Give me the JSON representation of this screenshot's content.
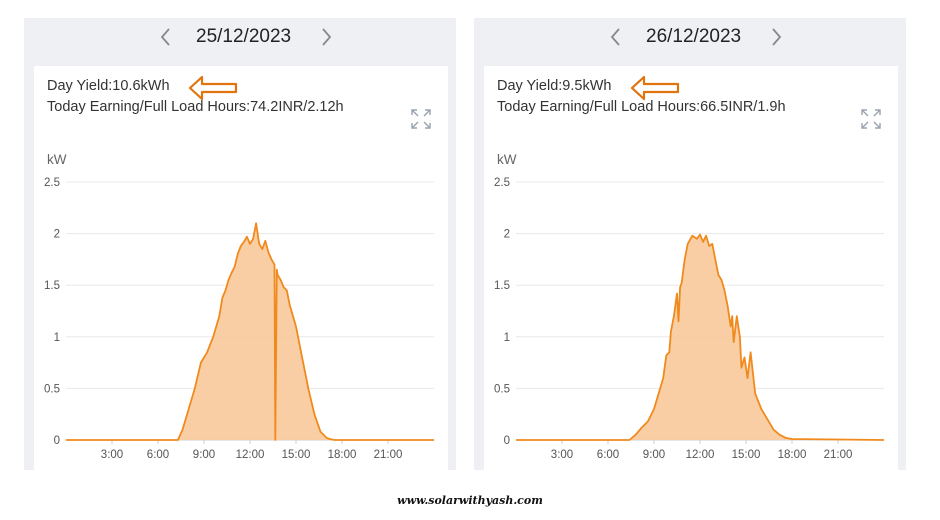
{
  "panels": [
    {
      "date": "25/12/2023",
      "day_yield": "Day Yield:10.6kWh",
      "earning": "Today Earning/Full Load Hours:74.2INR/2.12h",
      "unit": "kW"
    },
    {
      "date": "26/12/2023",
      "day_yield": "Day Yield:9.5kWh",
      "earning": "Today Earning/Full Load Hours:66.5INR/1.9h",
      "unit": "kW"
    }
  ],
  "icons": [
    "chevron-left-icon",
    "chevron-right-icon",
    "expand-icon",
    "hand-drawn-arrow-annotation"
  ],
  "colors": {
    "line": "#f08a1c",
    "fill": "#f9c99a",
    "annotation": "#e2740f",
    "grid": "#e8e8e8"
  },
  "watermark": "www.solarwithyash.com",
  "chart_data": [
    {
      "type": "area",
      "xlabel": "",
      "ylabel": "kW",
      "xlim": [
        0,
        24
      ],
      "ylim": [
        0,
        2.5
      ],
      "y_ticks": [
        "0",
        "0.5",
        "1",
        "1.5",
        "2",
        "2.5"
      ],
      "x_ticks": [
        "3:00",
        "6:00",
        "9:00",
        "12:00",
        "15:00",
        "18:00",
        "21:00"
      ],
      "grid": true,
      "legend": "none",
      "x": [
        0,
        7.3,
        7.6,
        8.0,
        8.4,
        8.8,
        9.2,
        9.6,
        10.0,
        10.2,
        10.4,
        10.6,
        10.8,
        11.0,
        11.2,
        11.4,
        11.6,
        11.8,
        12.0,
        12.2,
        12.4,
        12.6,
        12.8,
        13.0,
        13.2,
        13.4,
        13.6,
        13.65,
        13.75,
        13.8,
        14.0,
        14.2,
        14.4,
        14.6,
        15.0,
        15.4,
        15.8,
        16.2,
        16.6,
        17.0,
        17.2,
        17.5,
        18.0,
        24
      ],
      "y": [
        0,
        0,
        0.1,
        0.3,
        0.5,
        0.75,
        0.85,
        1.0,
        1.2,
        1.38,
        1.45,
        1.55,
        1.62,
        1.68,
        1.8,
        1.88,
        1.92,
        1.97,
        1.9,
        1.95,
        2.1,
        1.9,
        1.85,
        1.93,
        1.82,
        1.75,
        1.7,
        0.0,
        1.65,
        1.6,
        1.55,
        1.48,
        1.45,
        1.3,
        1.1,
        0.8,
        0.5,
        0.25,
        0.08,
        0.02,
        0.01,
        0.0,
        0.0,
        0.0
      ]
    },
    {
      "type": "area",
      "xlabel": "",
      "ylabel": "kW",
      "xlim": [
        0,
        24
      ],
      "ylim": [
        0,
        2.5
      ],
      "y_ticks": [
        "0",
        "0.5",
        "1",
        "1.5",
        "2",
        "2.5"
      ],
      "x_ticks": [
        "3:00",
        "6:00",
        "9:00",
        "12:00",
        "15:00",
        "18:00",
        "21:00"
      ],
      "grid": true,
      "legend": "none",
      "x": [
        0,
        7.4,
        7.8,
        8.2,
        8.6,
        9.0,
        9.3,
        9.6,
        9.8,
        10.0,
        10.1,
        10.3,
        10.5,
        10.6,
        10.7,
        10.8,
        11.0,
        11.2,
        11.5,
        11.8,
        12.0,
        12.2,
        12.4,
        12.6,
        12.8,
        13.0,
        13.2,
        13.4,
        13.6,
        13.8,
        14.0,
        14.1,
        14.2,
        14.4,
        14.6,
        14.7,
        14.9,
        15.1,
        15.3,
        15.6,
        16.0,
        16.4,
        16.8,
        17.2,
        17.6,
        18.0,
        24
      ],
      "y": [
        0,
        0,
        0.05,
        0.12,
        0.18,
        0.3,
        0.45,
        0.6,
        0.82,
        0.85,
        1.05,
        1.2,
        1.42,
        1.15,
        1.48,
        1.52,
        1.75,
        1.9,
        1.98,
        1.95,
        1.99,
        1.92,
        1.98,
        1.88,
        1.9,
        1.75,
        1.6,
        1.55,
        1.45,
        1.3,
        1.1,
        1.2,
        0.95,
        1.2,
        1.0,
        0.7,
        0.8,
        0.6,
        0.85,
        0.45,
        0.3,
        0.2,
        0.1,
        0.05,
        0.02,
        0.01,
        0
      ]
    }
  ]
}
